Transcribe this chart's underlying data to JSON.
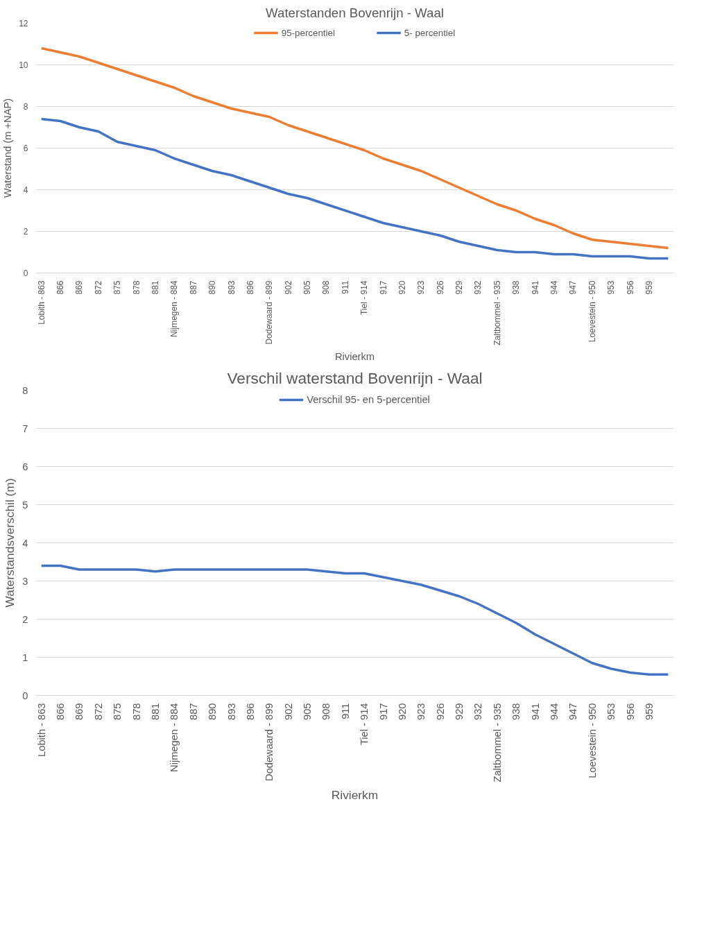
{
  "chart_data": [
    {
      "type": "line",
      "title": "Waterstanden Bovenrijn - Waal",
      "xlabel": "Rivierkm",
      "ylabel": "Waterstand (m +NAP)",
      "categories": [
        "Lobith - 863",
        "866",
        "869",
        "872",
        "875",
        "878",
        "881",
        "Nijmegen - 884",
        "887",
        "890",
        "893",
        "896",
        "Dodewaard - 899",
        "902",
        "905",
        "908",
        "911",
        "Tiel - 914",
        "917",
        "920",
        "923",
        "926",
        "929",
        "932",
        "Zaltbommel - 935",
        "938",
        "941",
        "944",
        "947",
        "Loevestein - 950",
        "953",
        "956",
        "959",
        null
      ],
      "series": [
        {
          "name": "95-percentiel",
          "color": "#ed7d31",
          "values": [
            10.8,
            10.6,
            10.4,
            10.1,
            9.8,
            9.5,
            9.2,
            8.9,
            8.5,
            8.2,
            7.9,
            7.7,
            7.5,
            7.1,
            6.8,
            6.5,
            6.2,
            5.9,
            5.5,
            5.2,
            4.9,
            4.5,
            4.1,
            3.7,
            3.3,
            3.0,
            2.6,
            2.3,
            1.9,
            1.6,
            1.5,
            1.4,
            1.3,
            1.2
          ]
        },
        {
          "name": "5- percentiel",
          "color": "#4472c4",
          "values": [
            7.4,
            7.3,
            7.0,
            6.8,
            6.3,
            6.1,
            5.9,
            5.5,
            5.2,
            4.9,
            4.7,
            4.4,
            4.1,
            3.8,
            3.6,
            3.3,
            3.0,
            2.7,
            2.4,
            2.2,
            2.0,
            1.8,
            1.5,
            1.3,
            1.1,
            1.0,
            1.0,
            0.9,
            0.9,
            0.8,
            0.8,
            0.8,
            0.7,
            0.7
          ]
        }
      ],
      "ylim": [
        0,
        12
      ],
      "yticks": [
        0,
        2,
        4,
        6,
        8,
        10,
        12
      ],
      "grid": "y",
      "legend": "top",
      "marker": "none",
      "line_style": "solid"
    },
    {
      "type": "line",
      "title": "Verschil waterstand Bovenrijn - Waal",
      "xlabel": "Rivierkm",
      "ylabel": "Waterstandsverschil (m)",
      "categories": [
        "Lobith - 863",
        "866",
        "869",
        "872",
        "875",
        "878",
        "881",
        "Nijmegen - 884",
        "887",
        "890",
        "893",
        "896",
        "Dodewaard - 899",
        "902",
        "905",
        "908",
        "911",
        "Tiel - 914",
        "917",
        "920",
        "923",
        "926",
        "929",
        "932",
        "Zaltbommel - 935",
        "938",
        "941",
        "944",
        "947",
        "Loevestein - 950",
        "953",
        "956",
        "959",
        null
      ],
      "series": [
        {
          "name": "Verschil 95- en 5-percentiel",
          "color": "#4472c4",
          "values": [
            3.4,
            3.4,
            3.3,
            3.3,
            3.3,
            3.3,
            3.25,
            3.3,
            3.3,
            3.3,
            3.3,
            3.3,
            3.3,
            3.3,
            3.3,
            3.25,
            3.2,
            3.2,
            3.1,
            3.0,
            2.9,
            2.75,
            2.6,
            2.4,
            2.15,
            1.9,
            1.6,
            1.35,
            1.1,
            0.85,
            0.7,
            0.6,
            0.55,
            0.55
          ]
        }
      ],
      "ylim": [
        0,
        8
      ],
      "yticks": [
        0,
        1,
        2,
        3,
        4,
        5,
        6,
        7,
        8
      ],
      "grid": "y",
      "legend": "top",
      "marker": "none",
      "line_style": "solid"
    }
  ]
}
